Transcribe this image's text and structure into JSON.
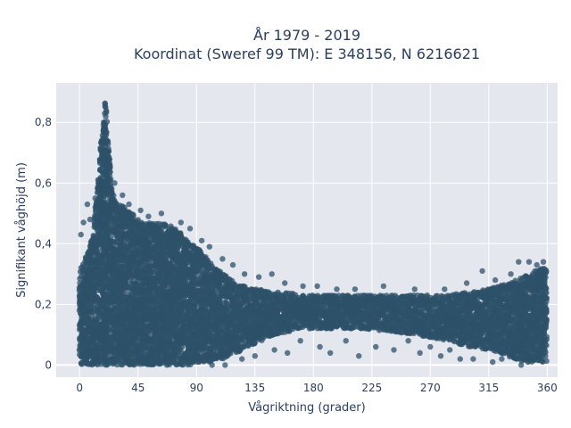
{
  "chart_data": {
    "type": "scatter",
    "title": "År 1979 - 2019",
    "subtitle": "Koordinat (Sweref 99 TM): E 348156, N 6216621",
    "xlabel": "Vågriktning (grader)",
    "ylabel": "Signifikant våghöjd (m)",
    "xlim": [
      -18,
      368
    ],
    "ylim": [
      -0.04,
      0.93
    ],
    "xticks": [
      0,
      45,
      90,
      135,
      180,
      225,
      270,
      315,
      360
    ],
    "xtick_labels": [
      "0",
      "45",
      "90",
      "135",
      "180",
      "225",
      "270",
      "315",
      "360"
    ],
    "yticks": [
      0,
      0.2,
      0.4,
      0.6,
      0.8
    ],
    "ytick_labels": [
      "0",
      "0,2",
      "0,4",
      "0,6",
      "0,8"
    ],
    "grid": true,
    "marker_color": "#2e5169",
    "plot_bg": "#e5e7ef",
    "envelope": {
      "x": [
        0,
        5,
        10,
        15,
        18,
        20,
        22,
        25,
        30,
        35,
        40,
        45,
        50,
        55,
        60,
        65,
        70,
        75,
        80,
        85,
        90,
        95,
        100,
        105,
        110,
        115,
        120,
        125,
        130,
        135,
        140,
        150,
        160,
        170,
        180,
        200,
        220,
        240,
        260,
        280,
        300,
        315,
        330,
        340,
        350,
        355,
        360
      ],
      "ymax": [
        0.31,
        0.36,
        0.43,
        0.66,
        0.8,
        0.88,
        0.75,
        0.57,
        0.53,
        0.52,
        0.5,
        0.48,
        0.47,
        0.47,
        0.47,
        0.47,
        0.46,
        0.45,
        0.42,
        0.4,
        0.39,
        0.37,
        0.34,
        0.32,
        0.3,
        0.29,
        0.27,
        0.26,
        0.26,
        0.25,
        0.25,
        0.24,
        0.24,
        0.23,
        0.23,
        0.23,
        0.23,
        0.23,
        0.23,
        0.23,
        0.24,
        0.25,
        0.27,
        0.29,
        0.31,
        0.32,
        0.33
      ],
      "ymin": [
        0.0,
        0.0,
        0.0,
        0.0,
        0.0,
        0.0,
        0.0,
        0.0,
        0.0,
        0.0,
        0.0,
        0.0,
        0.0,
        0.0,
        0.0,
        0.0,
        0.0,
        0.0,
        0.0,
        0.0,
        0.01,
        0.01,
        0.01,
        0.02,
        0.02,
        0.03,
        0.04,
        0.05,
        0.06,
        0.07,
        0.08,
        0.1,
        0.11,
        0.12,
        0.12,
        0.12,
        0.12,
        0.11,
        0.1,
        0.08,
        0.06,
        0.05,
        0.03,
        0.01,
        0.01,
        0.01,
        0.01
      ]
    },
    "outliers": [
      [
        1,
        0.43
      ],
      [
        3,
        0.47
      ],
      [
        6,
        0.53
      ],
      [
        8,
        0.48
      ],
      [
        12,
        0.55
      ],
      [
        27,
        0.6
      ],
      [
        33,
        0.56
      ],
      [
        38,
        0.53
      ],
      [
        47,
        0.51
      ],
      [
        53,
        0.49
      ],
      [
        63,
        0.5
      ],
      [
        78,
        0.47
      ],
      [
        85,
        0.45
      ],
      [
        94,
        0.41
      ],
      [
        100,
        0.39
      ],
      [
        110,
        0.35
      ],
      [
        118,
        0.33
      ],
      [
        127,
        0.3
      ],
      [
        138,
        0.29
      ],
      [
        148,
        0.3
      ],
      [
        158,
        0.27
      ],
      [
        172,
        0.26
      ],
      [
        183,
        0.26
      ],
      [
        198,
        0.25
      ],
      [
        212,
        0.25
      ],
      [
        234,
        0.26
      ],
      [
        258,
        0.25
      ],
      [
        281,
        0.25
      ],
      [
        298,
        0.27
      ],
      [
        310,
        0.31
      ],
      [
        320,
        0.28
      ],
      [
        332,
        0.3
      ],
      [
        338,
        0.34
      ],
      [
        346,
        0.34
      ],
      [
        352,
        0.33
      ],
      [
        357,
        0.34
      ],
      [
        150,
        0.05
      ],
      [
        160,
        0.04
      ],
      [
        170,
        0.08
      ],
      [
        185,
        0.06
      ],
      [
        193,
        0.04
      ],
      [
        205,
        0.08
      ],
      [
        215,
        0.03
      ],
      [
        228,
        0.06
      ],
      [
        242,
        0.05
      ],
      [
        253,
        0.08
      ],
      [
        262,
        0.04
      ],
      [
        270,
        0.06
      ],
      [
        278,
        0.03
      ],
      [
        285,
        0.05
      ],
      [
        293,
        0.02
      ],
      [
        303,
        0.02
      ],
      [
        318,
        0.01
      ],
      [
        325,
        0.02
      ],
      [
        340,
        0.0
      ],
      [
        135,
        0.03
      ],
      [
        125,
        0.02
      ],
      [
        112,
        0.0
      ],
      [
        102,
        0.0
      ],
      [
        96,
        0.02
      ]
    ]
  }
}
